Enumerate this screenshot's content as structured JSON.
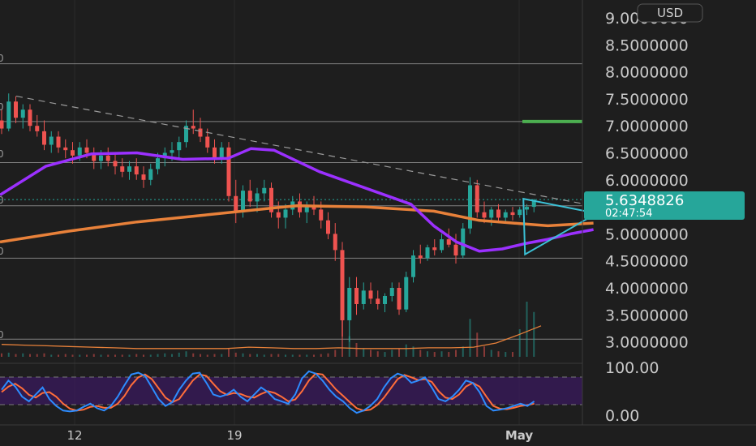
{
  "currency_button": "USD",
  "last_price": {
    "label": "5.6348826",
    "value": 5.6348826,
    "countdown": "02:47:54"
  },
  "price_axis": [
    {
      "label": "9.0000000",
      "value": 9.0
    },
    {
      "label": "8.5000000",
      "value": 8.5
    },
    {
      "label": "8.0000000",
      "value": 8.0
    },
    {
      "label": "7.5000000",
      "value": 7.5
    },
    {
      "label": "7.0000000",
      "value": 7.0
    },
    {
      "label": "6.5000000",
      "value": 6.5
    },
    {
      "label": "6.0000000",
      "value": 6.0
    },
    {
      "label": "5.0000000",
      "value": 5.0
    },
    {
      "label": "4.5000000",
      "value": 4.5
    },
    {
      "label": "4.0000000",
      "value": 4.0
    },
    {
      "label": "3.5000000",
      "value": 3.5
    },
    {
      "label": "3.0000000",
      "value": 3.0
    }
  ],
  "oscillator_axis": [
    {
      "label": "100.00",
      "value": 100
    },
    {
      "label": "0.00",
      "value": 0
    }
  ],
  "date_axis": [
    {
      "label": "12",
      "value": "Apr 12"
    },
    {
      "label": "19",
      "value": "Apr 19"
    },
    {
      "label": "May",
      "value": "May 1"
    }
  ],
  "left_edge_ticks": [
    "0",
    "0",
    "0",
    "0",
    "0",
    "0"
  ],
  "colors": {
    "background": "#1e1e1e",
    "bull_candle": "#26a69a",
    "bear_candle": "#ef5350",
    "ma_fast": "#9b30ff",
    "ma_slow": "#e8813a",
    "triangle": "#3bc1d6",
    "last_price_badge": "#26a69a",
    "target_line": "#4caf50",
    "stoch_k": "#2d8cff",
    "stoch_d": "#ff6d3a",
    "stoch_band": "#3a1a5e"
  },
  "chart_data": {
    "type": "candlestick",
    "y_range": [
      2.9,
      9.0
    ],
    "x_range": [
      "Apr 6",
      "May 3"
    ],
    "horizontal_levels": [
      8.15,
      7.08,
      6.32,
      5.52,
      4.55,
      3.05
    ],
    "target_level": 7.08,
    "trendline": [
      {
        "x": "Apr 6",
        "y": 7.55
      },
      {
        "x": "May 2",
        "y": 5.52
      }
    ],
    "triangle": [
      {
        "x": "Apr 29",
        "y": 5.65
      },
      {
        "x": "May 2",
        "y": 5.38
      },
      {
        "x": "Apr 29",
        "y": 4.62
      }
    ],
    "ma_fast": [
      {
        "x": "Apr 6",
        "y": 5.72
      },
      {
        "x": "Apr 8",
        "y": 6.25
      },
      {
        "x": "Apr 10",
        "y": 6.48
      },
      {
        "x": "Apr 12",
        "y": 6.5
      },
      {
        "x": "Apr 14",
        "y": 6.38
      },
      {
        "x": "Apr 16",
        "y": 6.4
      },
      {
        "x": "Apr 17",
        "y": 6.58
      },
      {
        "x": "Apr 18",
        "y": 6.55
      },
      {
        "x": "Apr 20",
        "y": 6.15
      },
      {
        "x": "Apr 22",
        "y": 5.85
      },
      {
        "x": "Apr 24",
        "y": 5.55
      },
      {
        "x": "Apr 25",
        "y": 5.15
      },
      {
        "x": "Apr 26",
        "y": 4.85
      },
      {
        "x": "Apr 27",
        "y": 4.68
      },
      {
        "x": "Apr 28",
        "y": 4.72
      },
      {
        "x": "Apr 29",
        "y": 4.82
      },
      {
        "x": "Apr 30",
        "y": 4.9
      },
      {
        "x": "May 1",
        "y": 5.0
      },
      {
        "x": "May 2",
        "y": 5.08
      }
    ],
    "ma_slow": [
      {
        "x": "Apr 6",
        "y": 4.85
      },
      {
        "x": "Apr 9",
        "y": 5.05
      },
      {
        "x": "Apr 12",
        "y": 5.22
      },
      {
        "x": "Apr 15",
        "y": 5.35
      },
      {
        "x": "Apr 18",
        "y": 5.48
      },
      {
        "x": "Apr 19",
        "y": 5.52
      },
      {
        "x": "Apr 22",
        "y": 5.5
      },
      {
        "x": "Apr 25",
        "y": 5.42
      },
      {
        "x": "Apr 27",
        "y": 5.25
      },
      {
        "x": "Apr 30",
        "y": 5.15
      },
      {
        "x": "May 2",
        "y": 5.2
      }
    ],
    "candles_start": "Apr 6",
    "candles_per_day": 4,
    "candles_ohlc": [
      [
        7.1,
        7.3,
        6.85,
        6.95
      ],
      [
        6.95,
        7.6,
        6.9,
        7.45
      ],
      [
        7.45,
        7.55,
        7.05,
        7.15
      ],
      [
        7.15,
        7.4,
        6.95,
        7.3
      ],
      [
        7.3,
        7.4,
        6.9,
        7.0
      ],
      [
        7.0,
        7.2,
        6.8,
        6.9
      ],
      [
        6.9,
        7.1,
        6.55,
        6.65
      ],
      [
        6.65,
        6.9,
        6.5,
        6.8
      ],
      [
        6.8,
        6.9,
        6.5,
        6.6
      ],
      [
        6.6,
        6.75,
        6.4,
        6.55
      ],
      [
        6.55,
        6.7,
        6.3,
        6.45
      ],
      [
        6.45,
        6.7,
        6.35,
        6.6
      ],
      [
        6.6,
        6.75,
        6.4,
        6.5
      ],
      [
        6.5,
        6.6,
        6.2,
        6.35
      ],
      [
        6.35,
        6.55,
        6.2,
        6.45
      ],
      [
        6.45,
        6.6,
        6.25,
        6.35
      ],
      [
        6.35,
        6.5,
        6.1,
        6.25
      ],
      [
        6.25,
        6.4,
        6.05,
        6.15
      ],
      [
        6.15,
        6.35,
        6.0,
        6.25
      ],
      [
        6.25,
        6.4,
        6.0,
        6.1
      ],
      [
        6.1,
        6.25,
        5.85,
        6.0
      ],
      [
        6.0,
        6.3,
        5.9,
        6.2
      ],
      [
        6.2,
        6.5,
        6.1,
        6.4
      ],
      [
        6.4,
        6.6,
        6.25,
        6.5
      ],
      [
        6.5,
        6.7,
        6.35,
        6.55
      ],
      [
        6.55,
        6.8,
        6.4,
        6.7
      ],
      [
        6.7,
        7.1,
        6.6,
        7.0
      ],
      [
        7.0,
        7.3,
        6.85,
        6.95
      ],
      [
        6.95,
        7.15,
        6.7,
        6.8
      ],
      [
        6.8,
        6.95,
        6.5,
        6.6
      ],
      [
        6.6,
        6.75,
        6.3,
        6.4
      ],
      [
        6.4,
        6.7,
        6.3,
        6.6
      ],
      [
        6.6,
        6.7,
        5.6,
        5.7
      ],
      [
        5.7,
        6.0,
        5.2,
        5.4
      ],
      [
        5.4,
        5.9,
        5.3,
        5.8
      ],
      [
        5.8,
        6.0,
        5.5,
        5.6
      ],
      [
        5.6,
        5.85,
        5.4,
        5.75
      ],
      [
        5.75,
        6.0,
        5.6,
        5.85
      ],
      [
        5.85,
        5.95,
        5.3,
        5.4
      ],
      [
        5.4,
        5.6,
        5.1,
        5.3
      ],
      [
        5.3,
        5.55,
        5.1,
        5.45
      ],
      [
        5.45,
        5.7,
        5.35,
        5.6
      ],
      [
        5.6,
        5.75,
        5.3,
        5.4
      ],
      [
        5.4,
        5.6,
        5.2,
        5.5
      ],
      [
        5.5,
        5.7,
        5.35,
        5.45
      ],
      [
        5.45,
        5.6,
        5.1,
        5.25
      ],
      [
        5.25,
        5.4,
        4.9,
        5.0
      ],
      [
        5.0,
        5.2,
        4.5,
        4.7
      ],
      [
        4.7,
        4.85,
        3.1,
        3.4
      ],
      [
        3.4,
        4.2,
        3.0,
        4.0
      ],
      [
        4.0,
        4.2,
        3.5,
        3.7
      ],
      [
        3.7,
        4.1,
        3.6,
        3.95
      ],
      [
        3.95,
        4.1,
        3.7,
        3.8
      ],
      [
        3.8,
        3.95,
        3.6,
        3.7
      ],
      [
        3.7,
        3.9,
        3.55,
        3.85
      ],
      [
        3.85,
        4.1,
        3.75,
        4.0
      ],
      [
        4.0,
        4.1,
        3.5,
        3.6
      ],
      [
        3.6,
        4.3,
        3.55,
        4.2
      ],
      [
        4.2,
        4.7,
        4.1,
        4.6
      ],
      [
        4.6,
        4.8,
        4.45,
        4.55
      ],
      [
        4.55,
        4.8,
        4.5,
        4.75
      ],
      [
        4.75,
        4.9,
        4.6,
        4.7
      ],
      [
        4.7,
        5.0,
        4.65,
        4.9
      ],
      [
        4.9,
        5.1,
        4.75,
        4.8
      ],
      [
        4.8,
        5.0,
        4.45,
        4.6
      ],
      [
        4.6,
        5.2,
        4.55,
        5.1
      ],
      [
        5.1,
        6.05,
        5.0,
        5.9
      ],
      [
        5.9,
        6.0,
        5.3,
        5.4
      ],
      [
        5.4,
        5.6,
        5.2,
        5.3
      ],
      [
        5.3,
        5.5,
        5.15,
        5.45
      ],
      [
        5.45,
        5.55,
        5.2,
        5.3
      ],
      [
        5.3,
        5.45,
        5.2,
        5.4
      ],
      [
        5.4,
        5.5,
        5.25,
        5.35
      ],
      [
        5.35,
        5.5,
        5.3,
        5.45
      ],
      [
        5.45,
        5.55,
        5.35,
        5.5
      ],
      [
        5.5,
        5.65,
        5.4,
        5.63
      ]
    ],
    "volume": [
      0.05,
      0.06,
      0.04,
      0.05,
      0.04,
      0.04,
      0.05,
      0.03,
      0.03,
      0.04,
      0.03,
      0.03,
      0.03,
      0.04,
      0.03,
      0.03,
      0.03,
      0.03,
      0.03,
      0.04,
      0.03,
      0.03,
      0.04,
      0.05,
      0.04,
      0.06,
      0.08,
      0.05,
      0.04,
      0.03,
      0.04,
      0.04,
      0.12,
      0.06,
      0.05,
      0.04,
      0.04,
      0.03,
      0.04,
      0.04,
      0.03,
      0.03,
      0.03,
      0.03,
      0.03,
      0.04,
      0.05,
      0.1,
      0.85,
      0.3,
      0.2,
      0.12,
      0.1,
      0.08,
      0.07,
      0.1,
      0.12,
      0.18,
      0.15,
      0.1,
      0.08,
      0.07,
      0.08,
      0.07,
      0.1,
      0.15,
      0.55,
      0.35,
      0.15,
      0.1,
      0.08,
      0.07,
      0.07,
      0.4,
      0.8,
      0.65
    ],
    "volume_ma": [
      0.18,
      0.17,
      0.16,
      0.15,
      0.14,
      0.13,
      0.12,
      0.12,
      0.12,
      0.12,
      0.12,
      0.14,
      0.13,
      0.12,
      0.12,
      0.13,
      0.12,
      0.12,
      0.12,
      0.13,
      0.13,
      0.14,
      0.2,
      0.32,
      0.45
    ],
    "stoch_k": [
      55,
      75,
      62,
      40,
      30,
      45,
      60,
      35,
      20,
      10,
      8,
      10,
      18,
      25,
      15,
      10,
      20,
      40,
      65,
      88,
      92,
      85,
      60,
      35,
      20,
      28,
      55,
      75,
      90,
      92,
      70,
      45,
      40,
      45,
      55,
      40,
      30,
      45,
      60,
      50,
      35,
      30,
      25,
      45,
      80,
      95,
      90,
      75,
      55,
      40,
      30,
      15,
      5,
      10,
      20,
      35,
      60,
      80,
      90,
      85,
      70,
      75,
      82,
      60,
      35,
      30,
      40,
      55,
      75,
      70,
      50,
      20,
      10,
      12,
      15,
      20,
      25,
      20,
      30
    ],
    "stoch_d": [
      50,
      62,
      68,
      58,
      44,
      38,
      48,
      50,
      40,
      25,
      14,
      10,
      12,
      18,
      20,
      16,
      16,
      25,
      42,
      65,
      82,
      88,
      78,
      58,
      38,
      28,
      35,
      55,
      75,
      88,
      85,
      68,
      52,
      44,
      48,
      46,
      40,
      38,
      46,
      52,
      48,
      40,
      30,
      34,
      52,
      75,
      90,
      88,
      72,
      55,
      42,
      28,
      15,
      10,
      12,
      22,
      38,
      58,
      78,
      87,
      82,
      76,
      78,
      72,
      52,
      38,
      35,
      45,
      62,
      70,
      62,
      40,
      20,
      14,
      13,
      16,
      20,
      22,
      25
    ]
  }
}
